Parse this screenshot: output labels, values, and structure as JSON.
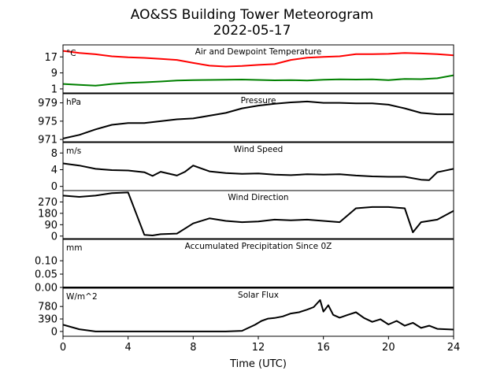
{
  "title": "AO&SS Building Tower Meteorogram",
  "subtitle": "2022-05-17",
  "chart_data": {
    "type": "line",
    "title": "AO&SS Building Tower Meteorogram",
    "subtitle": "2022-05-17",
    "xlabel": "Time (UTC)",
    "x_ticks": [
      0,
      4,
      8,
      12,
      16,
      20,
      24
    ],
    "xlim": [
      0,
      24
    ],
    "panels": [
      {
        "id": "temperature",
        "title": "Air and Dewpoint Temperature",
        "unit": "°C",
        "ylim": [
          -1,
          23
        ],
        "y_ticks": [
          1,
          9,
          17
        ],
        "series": [
          {
            "name": "Air Temperature",
            "color": "#ff0000",
            "x": [
              0,
              0.5,
              1,
              2,
              3,
              4,
              5,
              6,
              7,
              8,
              9,
              10,
              11,
              12,
              13,
              14,
              15,
              16,
              17,
              18,
              19,
              20,
              21,
              22,
              23,
              24
            ],
            "y": [
              20,
              19.5,
              19,
              18.3,
              17.3,
              16.8,
              16.5,
              16,
              15.5,
              14,
              12.6,
              12.2,
              12.5,
              13,
              13.4,
              15.5,
              16.6,
              17,
              17.3,
              18.4,
              18.4,
              18.5,
              19,
              18.7,
              18.4,
              17.8
            ]
          },
          {
            "name": "Dewpoint Temperature",
            "color": "#008000",
            "x": [
              0,
              1,
              2,
              3,
              4,
              5,
              6,
              7,
              8,
              9,
              10,
              11,
              12,
              13,
              14,
              15,
              16,
              17,
              18,
              19,
              20,
              21,
              22,
              23,
              24
            ],
            "y": [
              3.5,
              3,
              2.6,
              3.5,
              4,
              4.3,
              4.7,
              5.2,
              5.4,
              5.5,
              5.6,
              5.7,
              5.5,
              5.3,
              5.4,
              5.2,
              5.6,
              5.8,
              5.7,
              5.8,
              5.4,
              6,
              5.9,
              6.3,
              7.8
            ]
          }
        ]
      },
      {
        "id": "pressure",
        "title": "Pressure",
        "unit": "hPa",
        "ylim": [
          970.5,
          981
        ],
        "y_ticks": [
          971,
          975,
          979
        ],
        "series": [
          {
            "name": "Pressure",
            "color": "#000000",
            "x": [
              0,
              1,
              2,
              3,
              4,
              5,
              6,
              7,
              8,
              9,
              10,
              11,
              12,
              13,
              14,
              15,
              16,
              17,
              18,
              19,
              20,
              21,
              22,
              23,
              24
            ],
            "y": [
              971.2,
              972,
              973.2,
              974.2,
              974.6,
              974.6,
              975,
              975.4,
              975.6,
              976.2,
              976.8,
              977.8,
              978.4,
              978.8,
              979.1,
              979.3,
              979.0,
              979.0,
              978.9,
              978.9,
              978.6,
              977.8,
              976.8,
              976.5,
              976.5
            ]
          }
        ]
      },
      {
        "id": "wind_speed",
        "title": "Wind Speed",
        "unit": "m/s",
        "ylim": [
          -1,
          10.5
        ],
        "y_ticks": [
          0,
          4,
          8
        ],
        "series": [
          {
            "name": "Wind Speed",
            "color": "#000000",
            "x": [
              0,
              1,
              2,
              3,
              4,
              5,
              5.5,
              6,
              7,
              7.5,
              8,
              8.5,
              9,
              10,
              11,
              12,
              13,
              14,
              15,
              16,
              17,
              18,
              19,
              20,
              21,
              22,
              22.5,
              23,
              24
            ],
            "y": [
              5.5,
              5,
              4.2,
              3.9,
              3.8,
              3.4,
              2.5,
              3.5,
              2.6,
              3.5,
              5,
              4.3,
              3.6,
              3.2,
              3,
              3.1,
              2.8,
              2.7,
              2.9,
              2.8,
              2.9,
              2.6,
              2.4,
              2.3,
              2.3,
              1.6,
              1.5,
              3.4,
              4.2
            ]
          }
        ]
      },
      {
        "id": "wind_direction",
        "title": "Wind Direction",
        "unit": "",
        "ylim": [
          -20,
          360
        ],
        "y_ticks": [
          0,
          90,
          180,
          270
        ],
        "series": [
          {
            "name": "Wind Direction",
            "color": "#000000",
            "x": [
              0,
              1,
              2,
              3,
              4,
              5,
              5.5,
              6,
              7,
              7.5,
              8,
              9,
              10,
              11,
              12,
              13,
              14,
              15,
              16,
              17,
              18,
              19,
              20,
              21,
              21.5,
              22,
              23,
              24
            ],
            "y": [
              320,
              310,
              320,
              340,
              345,
              10,
              5,
              15,
              20,
              60,
              100,
              140,
              120,
              110,
              115,
              130,
              125,
              130,
              120,
              110,
              220,
              230,
              230,
              220,
              30,
              110,
              130,
              200
            ]
          }
        ]
      },
      {
        "id": "precipitation",
        "title": "Accumulated Precipitation Since 0Z",
        "unit": "mm",
        "ylim": [
          0,
          0.18
        ],
        "y_ticks": [
          0.0,
          0.05,
          0.1
        ],
        "y_tick_labels": [
          "0.00",
          "0.05",
          "0.10"
        ],
        "series": [
          {
            "name": "Accumulated Precipitation",
            "color": "#000000",
            "x": [
              0,
              24
            ],
            "y": [
              0,
              0
            ]
          }
        ]
      },
      {
        "id": "solar_flux",
        "title": "Solar Flux",
        "unit": "W/m^2",
        "ylim": [
          -150,
          1350
        ],
        "y_ticks": [
          0,
          390,
          780
        ],
        "series": [
          {
            "name": "Solar Flux",
            "color": "#000000",
            "x": [
              0,
              1,
              2,
              4,
              6,
              8,
              10,
              11,
              11.8,
              12.2,
              12.6,
              13,
              13.5,
              14,
              14.5,
              15,
              15.4,
              15.8,
              16.0,
              16.3,
              16.6,
              17,
              17.5,
              18,
              18.5,
              19,
              19.5,
              20,
              20.5,
              21,
              21.5,
              22,
              22.5,
              23,
              24
            ],
            "y": [
              210,
              70,
              0,
              0,
              0,
              0,
              0,
              20,
              210,
              330,
              400,
              420,
              470,
              560,
              600,
              680,
              760,
              980,
              620,
              820,
              520,
              430,
              520,
              600,
              420,
              300,
              380,
              220,
              330,
              180,
              270,
              110,
              180,
              80,
              60
            ]
          }
        ]
      }
    ]
  }
}
